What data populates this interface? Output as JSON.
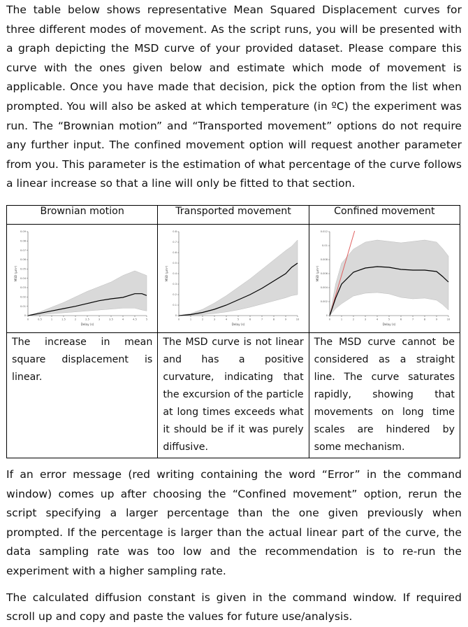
{
  "intro": "The table below shows representative Mean Squared Displacement curves for three different modes of movement. As the script runs, you will be presented with a graph depicting the MSD curve of your provided dataset. Please compare this curve with the ones given below and estimate which mode of movement is applicable. Once you have made that decision, pick the option from the list when prompted. You will also be asked at which temperature (in ºC) the experiment was run. The “Brownian motion” and “Transported movement” options do not require any further input. The confined movement option will request another parameter from you. This parameter is the estimation of what percentage of the curve follows a linear increase so that a line will only be fitted to that section.",
  "table": {
    "columns": [
      {
        "header": "Brownian motion",
        "description": "The increase in mean square displacement is linear."
      },
      {
        "header": "Transported movement",
        "description": "The MSD curve is not linear and has a positive curvature, indicating that the excursion of the particle at long times exceeds what it should be if it was purely diffusive."
      },
      {
        "header": "Confined movement",
        "description": "The MSD curve cannot be considered as a straight line. The curve saturates rapidly, showing that movements on long time scales are hindered by some mechanism."
      }
    ]
  },
  "error_note": "If an error message (red writing containing the word “Error” in the command window) comes up after choosing the “Confined movement” option, rerun the script specifying a larger percentage than the one given previously when prompted. If the percentage is larger than the actual linear part of the curve, the data sampling rate was too low and the recommendation is to re-run the experiment with a higher sampling rate.",
  "diffusion_note": "The calculated diffusion constant is given in the command window. If required scroll up and copy and paste the values for future use/analysis.",
  "chart_data": [
    {
      "type": "line",
      "xlabel": "Delay (s)",
      "ylabel": "MSD (µm²)",
      "xlim": [
        0,
        5
      ],
      "ylim": [
        0,
        0.09
      ],
      "xticks": [
        "0",
        "0.5",
        "1",
        "1.5",
        "2",
        "2.5",
        "3",
        "3.5",
        "4",
        "4.5",
        "5"
      ],
      "yticks": [
        "0",
        "0.01",
        "0.02",
        "0.03",
        "0.04",
        "0.05",
        "0.06",
        "0.07",
        "0.08",
        "0.09"
      ],
      "x": [
        0,
        0.5,
        1,
        1.5,
        2,
        2.5,
        3,
        3.5,
        4,
        4.5,
        4.8,
        5
      ],
      "mean": [
        0,
        0.0025,
        0.005,
        0.0075,
        0.01,
        0.013,
        0.016,
        0.018,
        0.0195,
        0.0235,
        0.0235,
        0.0215
      ],
      "upper": [
        0,
        0.004,
        0.009,
        0.014,
        0.02,
        0.026,
        0.031,
        0.036,
        0.043,
        0.048,
        0.045,
        0.043
      ],
      "lower": [
        0,
        0.001,
        0.002,
        0.003,
        0.004,
        0.005,
        0.006,
        0.007,
        0.008,
        0.008,
        0.006,
        0.005
      ],
      "band_color": "#d9d9d9",
      "line_color": "#000000"
    },
    {
      "type": "line",
      "xlabel": "Delay (s)",
      "ylabel": "MSD (µm²)",
      "xlim": [
        0,
        10
      ],
      "ylim": [
        0,
        0.8
      ],
      "xticks": [
        "0",
        "1",
        "2",
        "3",
        "4",
        "5",
        "6",
        "7",
        "8",
        "9",
        "10"
      ],
      "yticks": [
        "0",
        "0.1",
        "0.2",
        "0.3",
        "0.4",
        "0.5",
        "0.6",
        "0.7",
        "0.8"
      ],
      "x": [
        0,
        1,
        2,
        3,
        4,
        5,
        6,
        7,
        8,
        9,
        9.5,
        10
      ],
      "mean": [
        0,
        0.01,
        0.03,
        0.06,
        0.1,
        0.15,
        0.2,
        0.26,
        0.33,
        0.4,
        0.46,
        0.5
      ],
      "upper": [
        0,
        0.02,
        0.06,
        0.12,
        0.19,
        0.27,
        0.35,
        0.44,
        0.53,
        0.62,
        0.66,
        0.72
      ],
      "lower": [
        0,
        0.005,
        0.01,
        0.02,
        0.035,
        0.055,
        0.08,
        0.11,
        0.14,
        0.17,
        0.19,
        0.2
      ],
      "band_color": "#d9d9d9",
      "line_color": "#000000"
    },
    {
      "type": "line",
      "xlabel": "Delay (s)",
      "ylabel": "MSD (µm²)",
      "xlim": [
        0,
        10
      ],
      "ylim": [
        0,
        0.012
      ],
      "xticks": [
        "0",
        "1",
        "2",
        "3",
        "4",
        "5",
        "6",
        "7",
        "8",
        "9",
        "10"
      ],
      "yticks": [
        "0",
        "0.002",
        "0.004",
        "0.006",
        "0.008",
        "0.01",
        "0.012"
      ],
      "x": [
        0,
        0.5,
        1,
        2,
        3,
        4,
        5,
        6,
        7,
        8,
        9,
        9.5,
        10
      ],
      "mean": [
        0,
        0.0025,
        0.0045,
        0.0062,
        0.0068,
        0.007,
        0.0069,
        0.0066,
        0.0065,
        0.0065,
        0.0063,
        0.0056,
        0.0048
      ],
      "upper": [
        0,
        0.0045,
        0.0075,
        0.0095,
        0.0105,
        0.0108,
        0.0106,
        0.0104,
        0.0106,
        0.0108,
        0.0105,
        0.0096,
        0.0085
      ],
      "lower": [
        0,
        0.001,
        0.0017,
        0.0028,
        0.0032,
        0.0033,
        0.0031,
        0.0026,
        0.0024,
        0.0025,
        0.0022,
        0.0016,
        0.0008
      ],
      "fit_line": {
        "x": [
          0,
          2.1
        ],
        "y": [
          0,
          0.0121
        ],
        "color": "#e06060"
      },
      "band_color": "#d9d9d9",
      "line_color": "#000000"
    }
  ]
}
